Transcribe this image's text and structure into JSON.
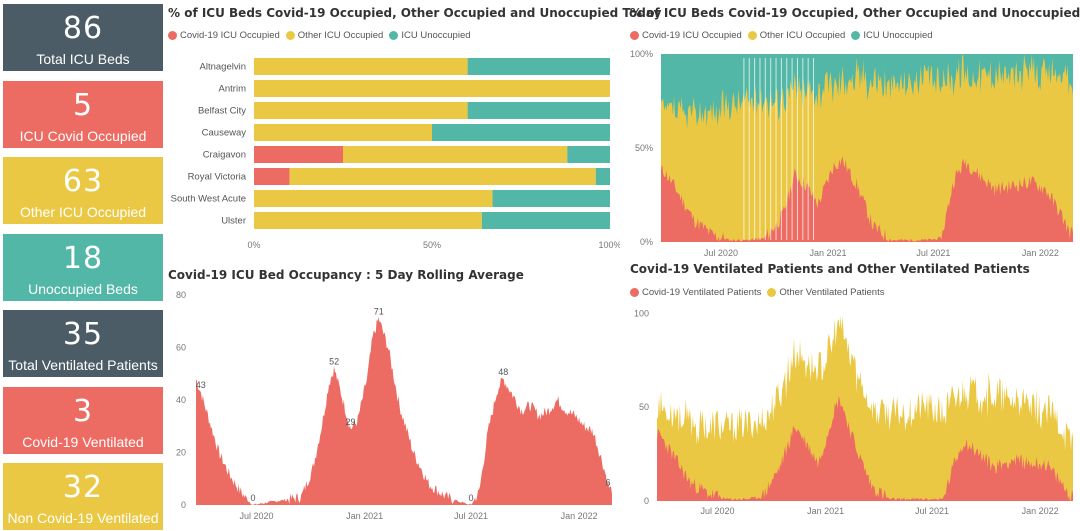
{
  "colors": {
    "covid": "#ec6b62",
    "other": "#ebc843",
    "unocc": "#52b7a6",
    "dark": "#4b5c66"
  },
  "kpis": [
    {
      "value": "86",
      "label": "Total ICU Beds",
      "color": "#4b5c66"
    },
    {
      "value": "5",
      "label": "ICU Covid Occupied",
      "color": "#ec6b62"
    },
    {
      "value": "63",
      "label": "Other ICU Occupied",
      "color": "#ebc843"
    },
    {
      "value": "18",
      "label": "Unoccupied Beds",
      "color": "#52b7a6"
    },
    {
      "value": "35",
      "label": "Total Ventilated Patients",
      "color": "#4b5c66"
    },
    {
      "value": "3",
      "label": "Covid-19 Ventilated",
      "color": "#ec6b62"
    },
    {
      "value": "32",
      "label": "Non Covid-19 Ventilated",
      "color": "#ebc843"
    }
  ],
  "panels": {
    "today": {
      "title": "% of ICU Beds Covid-19 Occupied, Other Occupied and Unoccupied Today",
      "legend": [
        "Covid-19 ICU Occupied",
        "Other ICU Occupied",
        "ICU Unoccupied"
      ]
    },
    "trend": {
      "title": "% of ICU Beds Covid-19 Occupied, Other Occupied and Unoccupied",
      "legend": [
        "Covid-19 ICU Occupied",
        "Other ICU Occupied",
        "ICU Unoccupied"
      ]
    },
    "rolling": {
      "title": "Covid-19 ICU Bed Occupancy : 5 Day Rolling Average"
    },
    "vent": {
      "title": "Covid-19 Ventilated Patients and Other Ventilated Patients",
      "legend": [
        "Covid-19 Ventilated Patients",
        "Other Ventilated Patients"
      ]
    }
  },
  "chart_data": [
    {
      "type": "bar",
      "orientation": "horizontal-stacked-100",
      "categories": [
        "Altnagelvin",
        "Antrim",
        "Belfast City",
        "Causeway",
        "Craigavon",
        "Royal Victoria",
        "South West Acute",
        "Ulster"
      ],
      "series": [
        {
          "name": "Covid-19 ICU Occupied",
          "values": [
            0,
            0,
            0,
            0,
            25,
            10,
            0,
            0
          ]
        },
        {
          "name": "Other ICU Occupied",
          "values": [
            60,
            100,
            60,
            50,
            63,
            86,
            67,
            64
          ]
        },
        {
          "name": "ICU Unoccupied",
          "values": [
            40,
            0,
            40,
            50,
            12,
            4,
            33,
            36
          ]
        }
      ],
      "xticks": [
        "0%",
        "50%",
        "100%"
      ],
      "xlim": [
        0,
        100
      ]
    },
    {
      "type": "area",
      "stacked": "percent",
      "series": [
        {
          "name": "Covid-19 ICU Occupied",
          "x": [
            "2020-03-25",
            "2020-04-15",
            "2020-05-15",
            "2020-06-15",
            "2020-07-15",
            "2020-08-15",
            "2020-09-15",
            "2020-10-15",
            "2020-11-05",
            "2020-11-25",
            "2020-12-15",
            "2021-01-10",
            "2021-01-25",
            "2021-02-20",
            "2021-03-20",
            "2021-04-20",
            "2021-05-20",
            "2021-06-20",
            "2021-07-15",
            "2021-08-05",
            "2021-08-25",
            "2021-09-20",
            "2021-10-15",
            "2021-11-15",
            "2021-12-15",
            "2022-01-10",
            "2022-02-05",
            "2022-02-20"
          ],
          "values": [
            38,
            28,
            12,
            4,
            1,
            1,
            2,
            14,
            36,
            30,
            20,
            40,
            44,
            30,
            8,
            1,
            1,
            1,
            2,
            33,
            43,
            35,
            28,
            30,
            32,
            28,
            15,
            5
          ]
        },
        {
          "name": "Other ICU Occupied",
          "x": [
            "2020-03-25",
            "2020-04-15",
            "2020-05-15",
            "2020-06-15",
            "2020-07-15",
            "2020-08-15",
            "2020-09-15",
            "2020-10-15",
            "2020-11-05",
            "2020-11-25",
            "2020-12-15",
            "2021-01-10",
            "2021-01-25",
            "2021-02-20",
            "2021-03-20",
            "2021-04-20",
            "2021-05-20",
            "2021-06-20",
            "2021-07-15",
            "2021-08-05",
            "2021-08-25",
            "2021-09-20",
            "2021-10-15",
            "2021-11-15",
            "2021-12-15",
            "2022-01-10",
            "2022-02-05",
            "2022-02-20"
          ],
          "values": [
            32,
            40,
            56,
            64,
            72,
            74,
            74,
            62,
            46,
            50,
            60,
            44,
            42,
            58,
            78,
            82,
            84,
            86,
            84,
            56,
            48,
            54,
            62,
            58,
            58,
            62,
            74,
            78
          ]
        }
      ],
      "yticks": [
        "0%",
        "50%",
        "100%"
      ],
      "xticks": [
        "Jul 2020",
        "Jan 2021",
        "Jul 2021",
        "Jan 2022"
      ],
      "ylim": [
        0,
        100
      ]
    },
    {
      "type": "area",
      "title": "Covid-19 ICU Bed Occupancy : 5 Day Rolling Average",
      "x": [
        "2020-03-20",
        "2020-03-28",
        "2020-04-12",
        "2020-04-28",
        "2020-05-15",
        "2020-06-01",
        "2020-06-15",
        "2020-06-25",
        "2020-07-20",
        "2020-08-20",
        "2020-09-15",
        "2020-10-05",
        "2020-10-20",
        "2020-11-01",
        "2020-11-10",
        "2020-11-25",
        "2020-12-08",
        "2020-12-20",
        "2021-01-05",
        "2021-01-15",
        "2021-01-25",
        "2021-02-10",
        "2021-03-01",
        "2021-03-25",
        "2021-04-20",
        "2021-05-20",
        "2021-06-15",
        "2021-07-01",
        "2021-07-15",
        "2021-07-30",
        "2021-08-15",
        "2021-08-25",
        "2021-09-10",
        "2021-09-25",
        "2021-10-10",
        "2021-10-25",
        "2021-11-10",
        "2021-11-25",
        "2021-12-10",
        "2021-12-25",
        "2022-01-10",
        "2022-01-25",
        "2022-02-10",
        "2022-02-22"
      ],
      "values": [
        48,
        43,
        32,
        20,
        12,
        6,
        2,
        0,
        1,
        2,
        3,
        14,
        30,
        46,
        52,
        40,
        29,
        32,
        48,
        64,
        71,
        60,
        38,
        20,
        8,
        3,
        1,
        0,
        5,
        28,
        44,
        48,
        42,
        36,
        38,
        34,
        36,
        40,
        36,
        34,
        30,
        28,
        16,
        6
      ],
      "labels": [
        {
          "x": "2020-03-28",
          "text": "43"
        },
        {
          "x": "2020-06-25",
          "text": "0"
        },
        {
          "x": "2020-11-10",
          "text": "52"
        },
        {
          "x": "2020-12-08",
          "text": "29"
        },
        {
          "x": "2021-01-25",
          "text": "71"
        },
        {
          "x": "2021-07-01",
          "text": "0"
        },
        {
          "x": "2021-08-25",
          "text": "48"
        },
        {
          "x": "2022-02-22",
          "text": "6"
        }
      ],
      "yticks": [
        "0",
        "20",
        "40",
        "60",
        "80"
      ],
      "xticks": [
        "Jul 2020",
        "Jan 2021",
        "Jul 2021",
        "Jan 2022"
      ],
      "ylim": [
        0,
        80
      ]
    },
    {
      "type": "area",
      "stacked": true,
      "series": [
        {
          "name": "Covid-19 Ventilated Patients",
          "x": [
            "2020-03-25",
            "2020-04-15",
            "2020-05-15",
            "2020-06-15",
            "2020-07-15",
            "2020-08-15",
            "2020-09-15",
            "2020-10-15",
            "2020-11-10",
            "2020-12-01",
            "2020-12-20",
            "2021-01-15",
            "2021-01-25",
            "2021-02-20",
            "2021-03-20",
            "2021-04-20",
            "2021-05-20",
            "2021-06-20",
            "2021-07-20",
            "2021-08-10",
            "2021-08-25",
            "2021-09-20",
            "2021-10-15",
            "2021-11-15",
            "2021-12-15",
            "2022-01-10",
            "2022-02-05",
            "2022-02-20"
          ],
          "values": [
            35,
            25,
            10,
            4,
            1,
            1,
            2,
            18,
            40,
            30,
            20,
            48,
            55,
            30,
            8,
            1,
            1,
            1,
            1,
            22,
            32,
            25,
            18,
            22,
            20,
            20,
            10,
            3
          ]
        },
        {
          "name": "Other Ventilated Patients",
          "x": [
            "2020-03-25",
            "2020-04-15",
            "2020-05-15",
            "2020-06-15",
            "2020-07-15",
            "2020-08-15",
            "2020-09-15",
            "2020-10-15",
            "2020-11-10",
            "2020-12-01",
            "2020-12-20",
            "2021-01-15",
            "2021-01-25",
            "2021-02-20",
            "2021-03-20",
            "2021-04-20",
            "2021-05-20",
            "2021-06-20",
            "2021-07-20",
            "2021-08-10",
            "2021-08-25",
            "2021-09-20",
            "2021-10-15",
            "2021-11-15",
            "2021-12-15",
            "2022-01-10",
            "2022-02-05",
            "2022-02-20"
          ],
          "values": [
            15,
            22,
            32,
            35,
            38,
            40,
            40,
            38,
            40,
            44,
            50,
            40,
            40,
            40,
            42,
            45,
            46,
            50,
            45,
            32,
            30,
            32,
            38,
            32,
            30,
            28,
            30,
            30
          ]
        }
      ],
      "yticks": [
        "0",
        "50",
        "100"
      ],
      "xticks": [
        "Jul 2020",
        "Jan 2021",
        "Jul 2021",
        "Jan 2022"
      ],
      "ylim": [
        0,
        105
      ]
    }
  ]
}
